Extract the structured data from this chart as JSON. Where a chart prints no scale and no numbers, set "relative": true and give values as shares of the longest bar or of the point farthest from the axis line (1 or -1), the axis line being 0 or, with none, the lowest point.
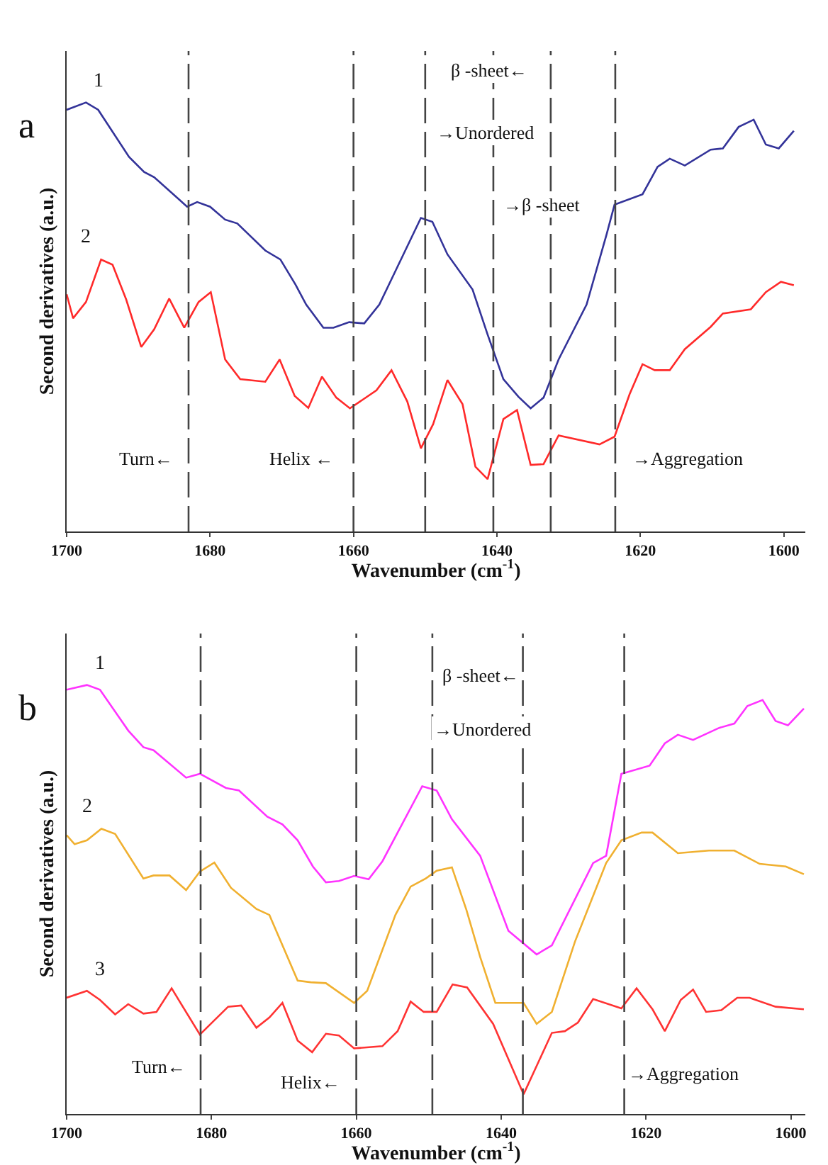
{
  "chart_data": [
    {
      "type": "line",
      "title": "a",
      "xlabel": "Wavenumber (cm$^{-1}$)",
      "ylabel": "Second derivatives (a.u.)",
      "relative": true,
      "xlim": [
        1700,
        1597
      ],
      "xticks": [
        1700,
        1680,
        1660,
        1640,
        1620,
        1600
      ],
      "series": [
        {
          "name": "1",
          "color": "#333399",
          "x": [
            1700,
            1697.3,
            1695.6,
            1691.3,
            1689.2,
            1687.8,
            1683.2,
            1681.8,
            1680.0,
            1677.9,
            1676.2,
            1672.3,
            1670.2,
            1668.1,
            1666.6,
            1664.2,
            1662.8,
            1660.6,
            1658.5,
            1656.4,
            1654.7,
            1650.6,
            1649.0,
            1646.9,
            1643.4,
            1641.3,
            1639.1,
            1637.0,
            1635.3,
            1633.5,
            1631.4,
            1627.5,
            1624.7,
            1623.6,
            1619.7,
            1617.6,
            1615.9,
            1613.8,
            1610.2,
            1608.5,
            1606.3,
            1604.2,
            1602.5,
            1600.7,
            1598.6
          ],
          "values": [
            0.983,
            1.0,
            0.983,
            0.873,
            0.838,
            0.826,
            0.757,
            0.768,
            0.757,
            0.727,
            0.718,
            0.655,
            0.634,
            0.576,
            0.529,
            0.475,
            0.475,
            0.488,
            0.485,
            0.529,
            0.588,
            0.731,
            0.722,
            0.646,
            0.564,
            0.459,
            0.355,
            0.314,
            0.287,
            0.312,
            0.401,
            0.529,
            0.693,
            0.762,
            0.786,
            0.85,
            0.869,
            0.853,
            0.89,
            0.893,
            0.943,
            0.96,
            0.902,
            0.893,
            0.934
          ]
        },
        {
          "name": "2",
          "color": "#ff2a2a",
          "x": [
            1700,
            1699.1,
            1697.3,
            1695.2,
            1693.6,
            1691.7,
            1689.6,
            1687.8,
            1685.7,
            1683.6,
            1681.6,
            1679.9,
            1677.9,
            1675.8,
            1672.3,
            1670.3,
            1668.2,
            1666.3,
            1664.4,
            1662.4,
            1660.5,
            1656.8,
            1654.7,
            1652.5,
            1650.6,
            1648.9,
            1646.9,
            1644.8,
            1643.0,
            1641.3,
            1639.1,
            1637.2,
            1635.3,
            1633.5,
            1631.4,
            1625.7,
            1623.6,
            1621.5,
            1619.7,
            1618.0,
            1615.9,
            1613.8,
            1610.2,
            1608.5,
            1604.6,
            1602.5,
            1600.4,
            1598.6
          ],
          "values": [
            0.553,
            0.497,
            0.535,
            0.634,
            0.622,
            0.541,
            0.43,
            0.471,
            0.543,
            0.475,
            0.535,
            0.558,
            0.401,
            0.355,
            0.349,
            0.401,
            0.316,
            0.288,
            0.361,
            0.312,
            0.287,
            0.329,
            0.376,
            0.303,
            0.194,
            0.25,
            0.353,
            0.297,
            0.151,
            0.122,
            0.262,
            0.283,
            0.155,
            0.157,
            0.224,
            0.203,
            0.221,
            0.32,
            0.39,
            0.376,
            0.376,
            0.425,
            0.477,
            0.508,
            0.518,
            0.558,
            0.582,
            0.574
          ]
        }
      ],
      "ref_lines": [
        {
          "axis": "x",
          "value": 1683,
          "color": "#444444",
          "line_style": "dashed"
        },
        {
          "axis": "x",
          "value": 1660,
          "color": "#444444",
          "line_style": "dashed"
        },
        {
          "axis": "x",
          "value": 1650,
          "color": "#444444",
          "line_style": "dashed"
        },
        {
          "axis": "x",
          "value": 1640.5,
          "color": "#444444",
          "line_style": "dashed"
        },
        {
          "axis": "x",
          "value": 1632.5,
          "color": "#444444",
          "line_style": "dashed"
        },
        {
          "axis": "x",
          "value": 1623.5,
          "color": "#444444",
          "line_style": "dashed"
        }
      ],
      "annotations": [
        "β -sheet←",
        "→Unordered",
        "→β -sheet",
        "Turn←",
        "Helix ←",
        "→Aggregation"
      ]
    },
    {
      "type": "line",
      "title": "b",
      "xlabel": "Wavenumber (cm$^{-1}$)",
      "ylabel": "Second derivatives (a.u.)",
      "relative": true,
      "xlim": [
        1700,
        1598
      ],
      "xticks": [
        1700,
        1680,
        1660,
        1640,
        1620,
        1600
      ],
      "series": [
        {
          "name": "1",
          "color": "#ff33ff",
          "x": [
            1700,
            1697.2,
            1695.4,
            1691.5,
            1689.4,
            1688,
            1683.5,
            1681.6,
            1678,
            1676.2,
            1672.3,
            1670.2,
            1668.1,
            1666,
            1664.2,
            1662.4,
            1660.3,
            1658.3,
            1656.4,
            1650.9,
            1648.9,
            1646.8,
            1642.9,
            1639,
            1635.1,
            1633,
            1627.3,
            1625.5,
            1623.4,
            1619.5,
            1617.4,
            1615.6,
            1613.5,
            1609.9,
            1607.8,
            1606,
            1603.9,
            1602.1,
            1600.4,
            1598.2
          ],
          "values": [
            0.989,
            1.0,
            0.989,
            0.894,
            0.855,
            0.848,
            0.784,
            0.793,
            0.76,
            0.754,
            0.693,
            0.675,
            0.638,
            0.577,
            0.54,
            0.543,
            0.555,
            0.547,
            0.589,
            0.764,
            0.754,
            0.687,
            0.602,
            0.427,
            0.372,
            0.393,
            0.585,
            0.602,
            0.793,
            0.812,
            0.864,
            0.884,
            0.872,
            0.9,
            0.91,
            0.951,
            0.965,
            0.916,
            0.906,
            0.945
          ]
        },
        {
          "name": "2",
          "color": "#f0b030",
          "x": [
            1700,
            1698.9,
            1697.2,
            1695.2,
            1693.3,
            1689.4,
            1688,
            1685.8,
            1683.5,
            1681.6,
            1679.6,
            1677.3,
            1673.8,
            1672,
            1668.1,
            1666.3,
            1664.2,
            1660.3,
            1658.5,
            1654.6,
            1652.5,
            1650.4,
            1648.9,
            1646.8,
            1644.8,
            1642.9,
            1640.8,
            1636.9,
            1635.1,
            1633,
            1629.8,
            1625.5,
            1623.4,
            1620.6,
            1619.1,
            1615.6,
            1611.3,
            1607.8,
            1604.3,
            1600.7,
            1598.2
          ],
          "values": [
            0.65,
            0.629,
            0.638,
            0.665,
            0.653,
            0.549,
            0.556,
            0.556,
            0.522,
            0.565,
            0.586,
            0.527,
            0.478,
            0.464,
            0.311,
            0.307,
            0.305,
            0.259,
            0.287,
            0.464,
            0.53,
            0.549,
            0.567,
            0.575,
            0.476,
            0.366,
            0.259,
            0.259,
            0.21,
            0.238,
            0.402,
            0.585,
            0.638,
            0.656,
            0.656,
            0.608,
            0.614,
            0.614,
            0.583,
            0.577,
            0.559
          ]
        },
        {
          "name": "3",
          "color": "#ff3333",
          "x": [
            1700,
            1697.2,
            1695.4,
            1693.3,
            1691.5,
            1689.4,
            1687.6,
            1685.5,
            1681.6,
            1677.7,
            1675.9,
            1673.8,
            1672,
            1670.2,
            1668.1,
            1666.1,
            1664.2,
            1662.4,
            1660.3,
            1656.4,
            1654.3,
            1652.5,
            1650.7,
            1648.9,
            1646.7,
            1644.7,
            1641.1,
            1636.9,
            1633,
            1631.2,
            1629.4,
            1627.3,
            1623.4,
            1621.3,
            1619.1,
            1617.4,
            1615.2,
            1613.5,
            1611.7,
            1609.6,
            1607.4,
            1605.7,
            1602.1,
            1598.2
          ],
          "values": [
            0.271,
            0.287,
            0.266,
            0.232,
            0.256,
            0.234,
            0.238,
            0.293,
            0.185,
            0.25,
            0.253,
            0.201,
            0.225,
            0.259,
            0.171,
            0.144,
            0.187,
            0.183,
            0.153,
            0.158,
            0.193,
            0.262,
            0.238,
            0.238,
            0.302,
            0.295,
            0.21,
            0.046,
            0.189,
            0.193,
            0.213,
            0.268,
            0.246,
            0.293,
            0.244,
            0.193,
            0.266,
            0.29,
            0.238,
            0.242,
            0.271,
            0.271,
            0.25,
            0.244
          ]
        }
      ],
      "ref_lines": [
        {
          "axis": "x",
          "value": 1681.5,
          "color": "#444444",
          "line_style": "dashed"
        },
        {
          "axis": "x",
          "value": 1660,
          "color": "#444444",
          "line_style": "dashed"
        },
        {
          "axis": "x",
          "value": 1649.5,
          "color": "#444444",
          "line_style": "dashed"
        },
        {
          "axis": "x",
          "value": 1637,
          "color": "#444444",
          "line_style": "dashed"
        },
        {
          "axis": "x",
          "value": 1623,
          "color": "#444444",
          "line_style": "dashed"
        }
      ],
      "annotations": [
        "β -sheet←",
        "→Unordered",
        "Turn←",
        "Helix←",
        "→Aggregation"
      ]
    }
  ]
}
